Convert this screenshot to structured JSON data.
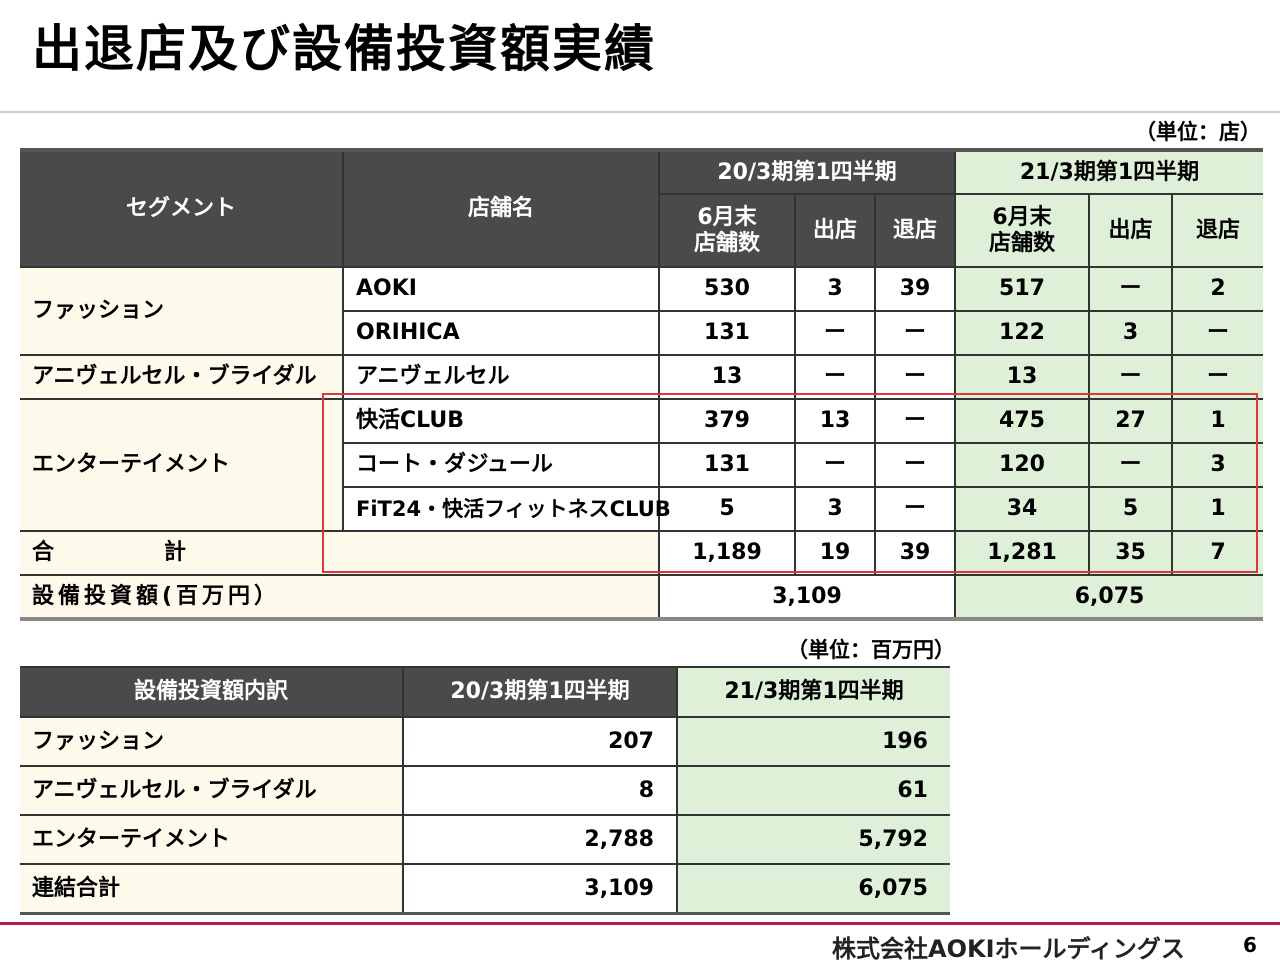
{
  "title": "出退店及び設備投資額実績",
  "unit_stores": "（単位：店）",
  "unit_money": "（単位：百万円）",
  "store_table": {
    "headers": {
      "segment": "セグメント",
      "store_name": "店舗名",
      "period_prev": "20/3期第1四半期",
      "period_curr": "21/3期第1四半期",
      "stores_end": "6月末\n店舗数",
      "opened": "出店",
      "closed": "退店"
    },
    "segments": {
      "fashion": "ファッション",
      "anniversaire": "アニヴェルセル・ブライダル",
      "entertainment": "エンターテイメント"
    },
    "rows": [
      {
        "name": "AOKI",
        "prev": [
          "530",
          "3",
          "39"
        ],
        "curr": [
          "517",
          "ー",
          "2"
        ]
      },
      {
        "name": "ORIHICA",
        "prev": [
          "131",
          "ー",
          "ー"
        ],
        "curr": [
          "122",
          "3",
          "ー"
        ]
      },
      {
        "name": "アニヴェルセル",
        "prev": [
          "13",
          "ー",
          "ー"
        ],
        "curr": [
          "13",
          "ー",
          "ー"
        ]
      },
      {
        "name": "快活CLUB",
        "prev": [
          "379",
          "13",
          "ー"
        ],
        "curr": [
          "475",
          "27",
          "1"
        ]
      },
      {
        "name": "コート・ダジュール",
        "prev": [
          "131",
          "ー",
          "ー"
        ],
        "curr": [
          "120",
          "ー",
          "3"
        ]
      },
      {
        "name": "FiT24・快活フィットネスCLUB",
        "prev": [
          "5",
          "3",
          "ー"
        ],
        "curr": [
          "34",
          "5",
          "1"
        ]
      }
    ],
    "total": {
      "label": "合　　　　　計",
      "prev": [
        "1,189",
        "19",
        "39"
      ],
      "curr": [
        "1,281",
        "35",
        "7"
      ]
    },
    "capex": {
      "label": "設備投資額(百万円）",
      "prev": "3,109",
      "curr": "6,075"
    }
  },
  "capex_table": {
    "headers": [
      "設備投資額内訳",
      "20/3期第1四半期",
      "21/3期第1四半期"
    ],
    "rows": [
      {
        "label": "ファッション",
        "prev": "207",
        "curr": "196"
      },
      {
        "label": "アニヴェルセル・ブライダル",
        "prev": "8",
        "curr": "61"
      },
      {
        "label": "エンターテイメント",
        "prev": "2,788",
        "curr": "5,792"
      },
      {
        "label": "連結合計",
        "prev": "3,109",
        "curr": "6,075"
      }
    ]
  },
  "footer": {
    "company": "株式会社AOKIホールディングス",
    "page": "6"
  },
  "colors": {
    "header_dark": "#4a4a4a",
    "header_green": "#dff0d8",
    "label_cream": "#fdfaeb",
    "highlight_red": "#d9393d",
    "footer_rule": "#b01e4f"
  }
}
